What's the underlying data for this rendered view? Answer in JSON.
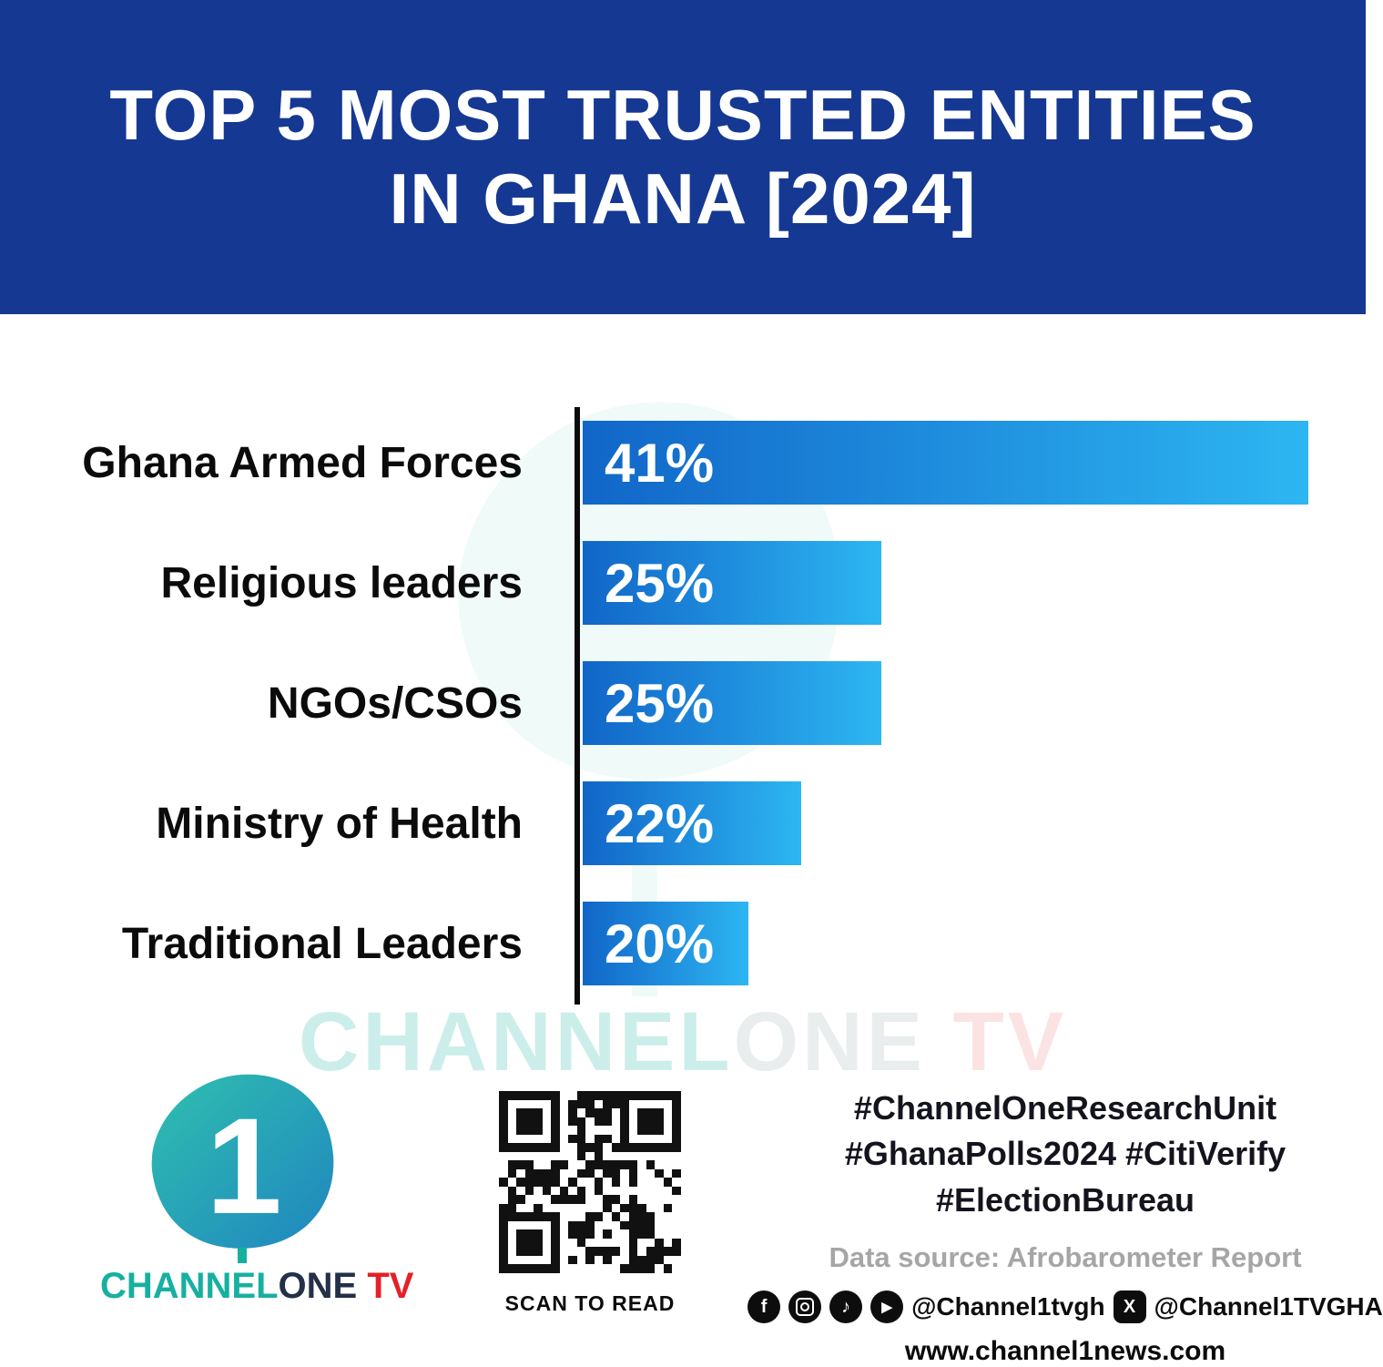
{
  "header": {
    "title_line1": "TOP 5 MOST TRUSTED ENTITIES",
    "title_line2": "IN GHANA [2024]",
    "bg_color": "#153893"
  },
  "chart_data": {
    "type": "bar",
    "orientation": "horizontal",
    "title": "Top 5 Most Trusted Entities in Ghana [2024]",
    "categories": [
      "Ghana Armed Forces",
      "Religious leaders",
      "NGOs/CSOs",
      "Ministry of Health",
      "Traditional Leaders"
    ],
    "values": [
      41,
      25,
      25,
      22,
      20
    ],
    "value_labels": [
      "41%",
      "25%",
      "25%",
      "22%",
      "20%"
    ],
    "unit": "%",
    "xlim": [
      0,
      45
    ],
    "grid": false,
    "legend": false,
    "bar_color_start": "#1166c8",
    "bar_color_end": "#2db6f2",
    "axis_color": "#0a0a0a",
    "bar_pixel_widths": [
      797,
      328,
      328,
      240,
      182
    ]
  },
  "watermark": {
    "part1": "CHANNEL",
    "part2": "ONE",
    "part3": " TV"
  },
  "footer": {
    "logo": {
      "digit": "1",
      "channel": "CHANNEL",
      "one": "ONE",
      "tv": " TV",
      "teal": "#17b0a0",
      "red": "#e42127"
    },
    "qr_caption": "SCAN TO READ",
    "hashtags": [
      "#ChannelOneResearchUnit",
      "#GhanaPolls2024 #CitiVerify",
      "#ElectionBureau"
    ],
    "data_source": "Data source: Afrobarometer Report",
    "social": {
      "handle_main": "@Channel1tvgh",
      "handle_x": "@Channel1TVGHA",
      "website": "www.channel1news.com"
    }
  }
}
